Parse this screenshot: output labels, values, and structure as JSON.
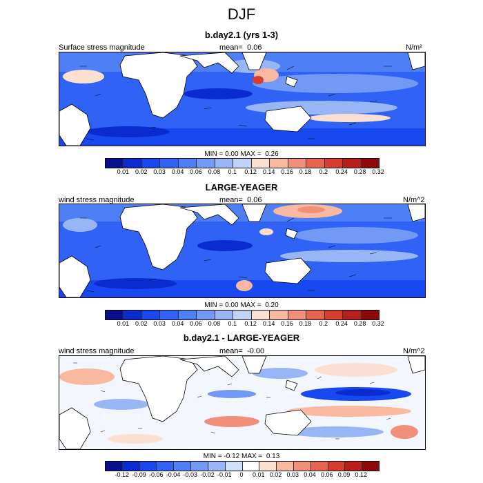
{
  "title": "DJF",
  "panels": [
    {
      "title": "b.day2.1 (yrs 1-3)",
      "left_label": "Surface stress magnitude",
      "mean_label": "mean=",
      "mean_value": "0.06",
      "units": "N/m²",
      "min_label": "MIN =",
      "min_value": "0.00",
      "max_label": "MAX =",
      "max_value": "0.26",
      "colorbar_levels": [
        "0.01",
        "0.02",
        "0.03",
        "0.04",
        "0.06",
        "0.08",
        "0.1",
        "0.12",
        "0.14",
        "0.16",
        "0.18",
        "0.2",
        "0.24",
        "0.28",
        "0.32"
      ],
      "colorbar_colors": [
        "#08108c",
        "#0a2bd0",
        "#1848f0",
        "#2f62f5",
        "#4f7ff5",
        "#7299f5",
        "#98b6f5",
        "#bfd4f8",
        "#fbe0d2",
        "#f8b9a0",
        "#f1907a",
        "#e7654f",
        "#d83e30",
        "#b81f1a",
        "#8c0a0a"
      ]
    },
    {
      "title": "LARGE-YEAGER",
      "left_label": "wind stress magnitude",
      "mean_label": "mean=",
      "mean_value": "0.06",
      "units": "N/m^2",
      "min_label": "MIN =",
      "min_value": "0.00",
      "max_label": "MAX =",
      "max_value": "0.20",
      "colorbar_levels": [
        "0.01",
        "0.02",
        "0.03",
        "0.04",
        "0.06",
        "0.08",
        "0.1",
        "0.12",
        "0.14",
        "0.16",
        "0.18",
        "0.2",
        "0.24",
        "0.28",
        "0.32"
      ],
      "colorbar_colors": [
        "#08108c",
        "#0a2bd0",
        "#1848f0",
        "#2f62f5",
        "#4f7ff5",
        "#7299f5",
        "#98b6f5",
        "#bfd4f8",
        "#fbe0d2",
        "#f8b9a0",
        "#f1907a",
        "#e7654f",
        "#d83e30",
        "#b81f1a",
        "#8c0a0a"
      ]
    },
    {
      "title": "b.day2.1 - LARGE-YEAGER",
      "left_label": "wind stress magnitude",
      "mean_label": "mean=",
      "mean_value": "-0.00",
      "units": "N/m^2",
      "min_label": "MIN =",
      "min_value": "-0.12",
      "max_label": "MAX =",
      "max_value": "0.13",
      "colorbar_levels": [
        "-0.12",
        "-0.09",
        "-0.06",
        "-0.04",
        "-0.03",
        "-0.02",
        "-0.01",
        "0",
        "0.01",
        "0.02",
        "0.03",
        "0.04",
        "0.06",
        "0.09",
        "0.12"
      ],
      "colorbar_colors": [
        "#08108c",
        "#0a2bd0",
        "#1848f0",
        "#2f62f5",
        "#4f7ff5",
        "#7299f5",
        "#98b6f5",
        "#cfe0fa",
        "#ffffff",
        "#fbe0d2",
        "#f8b9a0",
        "#f1907a",
        "#e7654f",
        "#d83e30",
        "#b81f1a",
        "#8c0a0a"
      ]
    }
  ],
  "chart_data": [
    {
      "type": "heatmap",
      "title": "b.day2.1 (yrs 1-3)",
      "variable": "Surface stress magnitude",
      "units": "N/m²",
      "mean": 0.06,
      "min": 0.0,
      "max": 0.26,
      "levels": [
        0.01,
        0.02,
        0.03,
        0.04,
        0.06,
        0.08,
        0.1,
        0.12,
        0.14,
        0.16,
        0.18,
        0.2,
        0.24,
        0.28,
        0.32
      ]
    },
    {
      "type": "heatmap",
      "title": "LARGE-YEAGER",
      "variable": "wind stress magnitude",
      "units": "N/m^2",
      "mean": 0.06,
      "min": 0.0,
      "max": 0.2,
      "levels": [
        0.01,
        0.02,
        0.03,
        0.04,
        0.06,
        0.08,
        0.1,
        0.12,
        0.14,
        0.16,
        0.18,
        0.2,
        0.24,
        0.28,
        0.32
      ]
    },
    {
      "type": "heatmap",
      "title": "b.day2.1 - LARGE-YEAGER",
      "variable": "wind stress magnitude",
      "units": "N/m^2",
      "mean": -0.0,
      "min": -0.12,
      "max": 0.13,
      "levels": [
        -0.12,
        -0.09,
        -0.06,
        -0.04,
        -0.03,
        -0.02,
        -0.01,
        0,
        0.01,
        0.02,
        0.03,
        0.04,
        0.06,
        0.09,
        0.12
      ]
    }
  ]
}
